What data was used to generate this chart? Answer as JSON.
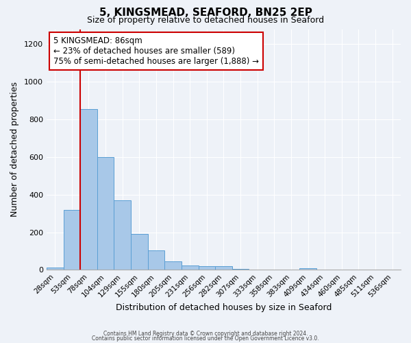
{
  "title": "5, KINGSMEAD, SEAFORD, BN25 2EP",
  "subtitle": "Size of property relative to detached houses in Seaford",
  "xlabel": "Distribution of detached houses by size in Seaford",
  "ylabel": "Number of detached properties",
  "bin_labels": [
    "28sqm",
    "53sqm",
    "78sqm",
    "104sqm",
    "129sqm",
    "155sqm",
    "180sqm",
    "205sqm",
    "231sqm",
    "256sqm",
    "282sqm",
    "307sqm",
    "333sqm",
    "358sqm",
    "383sqm",
    "409sqm",
    "434sqm",
    "460sqm",
    "485sqm",
    "511sqm",
    "536sqm"
  ],
  "bin_values": [
    12,
    320,
    855,
    600,
    370,
    190,
    105,
    45,
    22,
    18,
    20,
    5,
    0,
    0,
    0,
    10,
    0,
    0,
    0,
    0,
    0
  ],
  "bar_color": "#a8c8e8",
  "bar_edge_color": "#5a9fd4",
  "vline_x_index": 2,
  "vline_color": "#cc0000",
  "annotation_text": "5 KINGSMEAD: 86sqm\n← 23% of detached houses are smaller (589)\n75% of semi-detached houses are larger (1,888) →",
  "annotation_box_color": "#ffffff",
  "annotation_box_edge": "#cc0000",
  "ylim": [
    0,
    1280
  ],
  "yticks": [
    0,
    200,
    400,
    600,
    800,
    1000,
    1200
  ],
  "footer_line1": "Contains HM Land Registry data © Crown copyright and database right 2024.",
  "footer_line2": "Contains public sector information licensed under the Open Government Licence v3.0.",
  "bg_color": "#eef2f8",
  "plot_bg_color": "#eef2f8"
}
